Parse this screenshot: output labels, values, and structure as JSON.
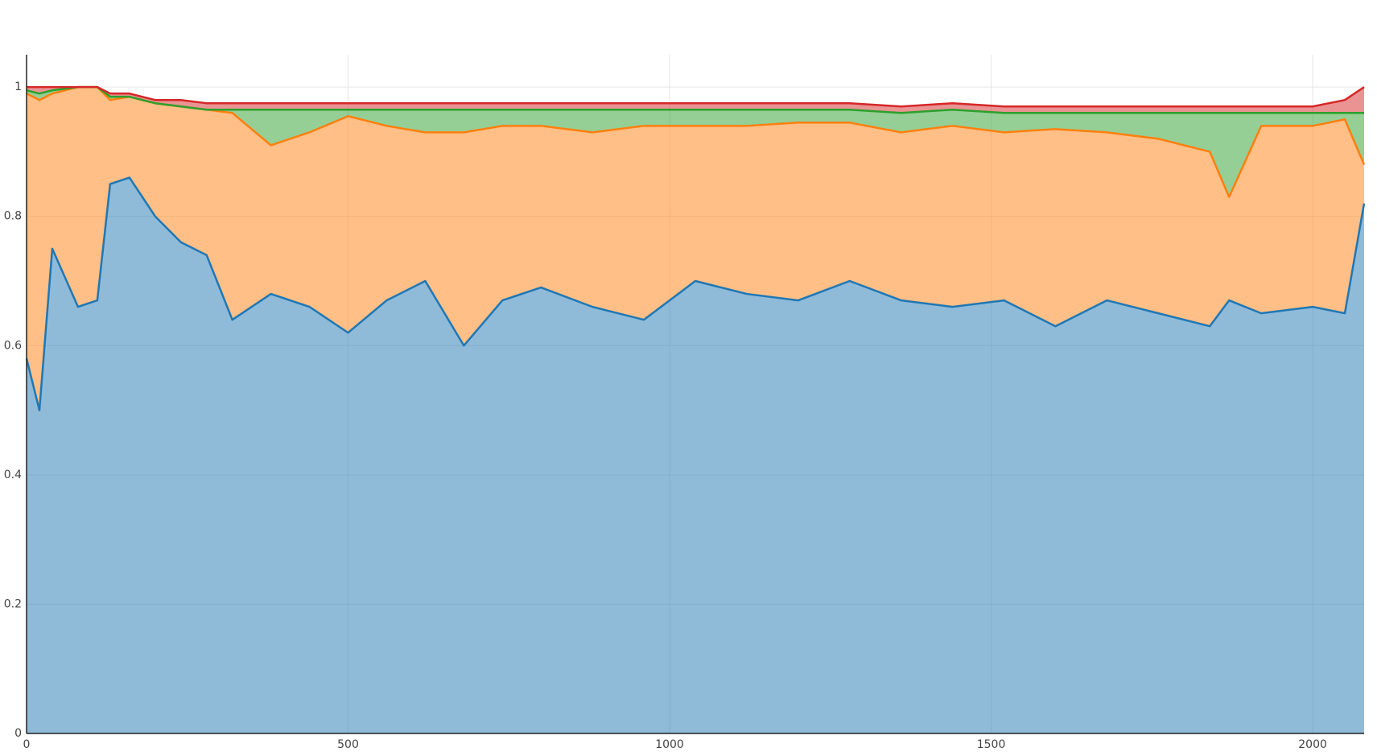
{
  "chart_data": {
    "type": "stacked_area",
    "x": [
      0,
      20,
      40,
      80,
      110,
      130,
      160,
      200,
      240,
      280,
      320,
      380,
      440,
      500,
      560,
      620,
      680,
      740,
      800,
      880,
      960,
      1040,
      1120,
      1200,
      1280,
      1360,
      1440,
      1520,
      1600,
      1680,
      1760,
      1840,
      1870,
      1920,
      2000,
      2050,
      2080
    ],
    "series": [
      {
        "color": "#1f77b4",
        "values": [
          0.58,
          0.5,
          0.75,
          0.66,
          0.67,
          0.85,
          0.86,
          0.8,
          0.76,
          0.74,
          0.64,
          0.68,
          0.66,
          0.62,
          0.67,
          0.7,
          0.6,
          0.67,
          0.69,
          0.66,
          0.64,
          0.7,
          0.68,
          0.67,
          0.7,
          0.67,
          0.66,
          0.67,
          0.63,
          0.67,
          0.65,
          0.63,
          0.67,
          0.65,
          0.66,
          0.65,
          0.82
        ]
      },
      {
        "color": "#ff7f0e",
        "values": [
          0.41,
          0.48,
          0.24,
          0.34,
          0.33,
          0.13,
          0.125,
          0.175,
          0.21,
          0.225,
          0.32,
          0.23,
          0.27,
          0.335,
          0.27,
          0.23,
          0.33,
          0.27,
          0.25,
          0.27,
          0.3,
          0.24,
          0.26,
          0.275,
          0.245,
          0.26,
          0.28,
          0.26,
          0.305,
          0.26,
          0.27,
          0.27,
          0.16,
          0.29,
          0.28,
          0.3,
          0.06
        ]
      },
      {
        "color": "#2ca02c",
        "values": [
          0.005,
          0.01,
          0.005,
          0,
          0,
          0.005,
          0,
          0,
          0,
          0,
          0.005,
          0.055,
          0.035,
          0.01,
          0.025,
          0.035,
          0.035,
          0.025,
          0.025,
          0.035,
          0.025,
          0.025,
          0.025,
          0.02,
          0.02,
          0.03,
          0.025,
          0.03,
          0.025,
          0.03,
          0.04,
          0.06,
          0.13,
          0.02,
          0.02,
          0.01,
          0.08
        ]
      },
      {
        "color": "#d62728",
        "values": [
          0.005,
          0.01,
          0.005,
          0,
          0,
          0.005,
          0.005,
          0.005,
          0.01,
          0.01,
          0.01,
          0.01,
          0.01,
          0.01,
          0.01,
          0.01,
          0.01,
          0.01,
          0.01,
          0.01,
          0.01,
          0.01,
          0.01,
          0.01,
          0.01,
          0.01,
          0.01,
          0.01,
          0.01,
          0.01,
          0.01,
          0.01,
          0.01,
          0.01,
          0.01,
          0.02,
          0.04
        ]
      }
    ],
    "xlim": [
      0,
      2080
    ],
    "ylim": [
      0,
      1.05
    ],
    "xticks": [
      0,
      500,
      1000,
      1500,
      2000
    ],
    "yticks": [
      0,
      0.2,
      0.4,
      0.6,
      0.8,
      1
    ],
    "grid": true
  }
}
